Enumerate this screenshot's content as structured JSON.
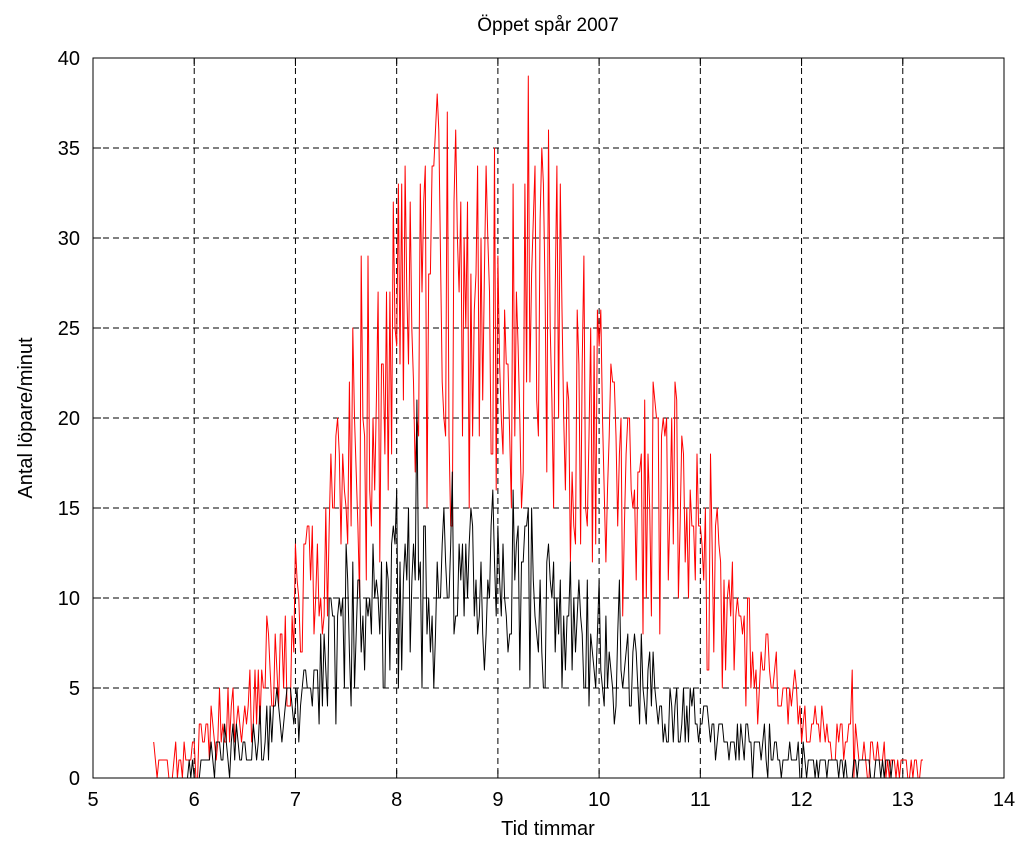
{
  "chart_data": {
    "type": "line",
    "title": "Öppet spår 2007",
    "xlabel": "Tid timmar",
    "ylabel": "Antal löpare/minut",
    "xlim": [
      5,
      14
    ],
    "ylim": [
      0,
      40
    ],
    "xticks": [
      5,
      6,
      7,
      8,
      9,
      10,
      11,
      12,
      13,
      14
    ],
    "yticks": [
      0,
      5,
      10,
      15,
      20,
      25,
      30,
      35,
      40
    ],
    "grid": true,
    "legend": "none",
    "series_envelope_note": "",
    "series": [
      {
        "color": "#ff0000",
        "x": [
          5.6,
          5.7,
          5.8,
          5.9,
          6.0,
          6.1,
          6.2,
          6.3,
          6.4,
          6.5,
          6.6,
          6.7,
          6.8,
          6.9,
          7.0,
          7.1,
          7.2,
          7.3,
          7.4,
          7.5,
          7.6,
          7.7,
          7.8,
          7.9,
          8.0,
          8.1,
          8.2,
          8.3,
          8.4,
          8.5,
          8.6,
          8.7,
          8.8,
          8.9,
          9.0,
          9.1,
          9.2,
          9.3,
          9.4,
          9.5,
          9.6,
          9.7,
          9.8,
          9.9,
          10.0,
          10.1,
          10.2,
          10.3,
          10.4,
          10.5,
          10.6,
          10.7,
          10.8,
          10.9,
          11.0,
          11.1,
          11.2,
          11.3,
          11.4,
          11.5,
          11.6,
          11.7,
          11.8,
          11.9,
          12.0,
          12.1,
          12.2,
          12.3,
          12.4,
          12.5,
          12.6,
          12.7,
          12.8,
          12.9,
          13.0,
          13.1,
          13.2
        ],
        "y": [
          1,
          0.5,
          1,
          1,
          1.5,
          2,
          2.5,
          3,
          3,
          4,
          5,
          6,
          6.5,
          7,
          8.5,
          10,
          11,
          12,
          13.5,
          15,
          17.5,
          19.5,
          21,
          22,
          23.5,
          24.5,
          24,
          24.5,
          25,
          25,
          25,
          25,
          24.5,
          24,
          24.5,
          25,
          25.5,
          26,
          25.5,
          25,
          24,
          23,
          21.5,
          20,
          18.5,
          17.5,
          17,
          16.5,
          16,
          15.5,
          15,
          14.5,
          14,
          13,
          12,
          10.5,
          9.5,
          8.5,
          7.5,
          7,
          6,
          5,
          4.5,
          4,
          3.5,
          3,
          2.5,
          2,
          2,
          1.5,
          1.5,
          1,
          1,
          0.5,
          0.5,
          0.5,
          1
        ],
        "peaks": [
          [
            7.0,
            13
          ],
          [
            7.65,
            29
          ],
          [
            8.05,
            33
          ],
          [
            8.4,
            38
          ],
          [
            8.5,
            37
          ],
          [
            8.8,
            34
          ],
          [
            9.3,
            39
          ],
          [
            9.45,
            33
          ],
          [
            10.75,
            22
          ],
          [
            11.1,
            18
          ],
          [
            12.5,
            6
          ]
        ]
      },
      {
        "color": "#000000",
        "x": [
          5.9,
          6.0,
          6.1,
          6.2,
          6.3,
          6.4,
          6.5,
          6.6,
          6.7,
          6.8,
          6.9,
          7.0,
          7.1,
          7.2,
          7.3,
          7.4,
          7.5,
          7.6,
          7.7,
          7.8,
          7.9,
          8.0,
          8.1,
          8.2,
          8.3,
          8.4,
          8.5,
          8.6,
          8.7,
          8.8,
          8.9,
          9.0,
          9.1,
          9.2,
          9.3,
          9.4,
          9.5,
          9.6,
          9.7,
          9.8,
          9.9,
          10.0,
          10.1,
          10.2,
          10.3,
          10.4,
          10.5,
          10.6,
          10.7,
          10.8,
          10.9,
          11.0,
          11.1,
          11.2,
          11.3,
          11.4,
          11.5,
          11.6,
          11.7,
          11.8,
          11.9,
          12.0,
          12.1,
          12.2,
          12.3,
          12.4,
          12.5,
          12.6,
          12.7,
          12.8,
          12.9
        ],
        "y": [
          0.5,
          0.5,
          1,
          1,
          1.5,
          1.5,
          2,
          2,
          2.5,
          3,
          3.5,
          4,
          5,
          5.5,
          6.5,
          7,
          7.5,
          8,
          8.5,
          9,
          9,
          9.5,
          10,
          10,
          10,
          10,
          10,
          10.5,
          10.5,
          10.5,
          10,
          10,
          10,
          10,
          10,
          9.5,
          9,
          8.5,
          8,
          7.5,
          7,
          7,
          6.5,
          6,
          5.5,
          5,
          5,
          4.5,
          4,
          3.5,
          3,
          3,
          2.5,
          2.5,
          2,
          2,
          1.5,
          1.5,
          1.5,
          1,
          1,
          1,
          0.5,
          0.5,
          0.5,
          0.5,
          0.5,
          0.5,
          0.5,
          0.5,
          0.5
        ],
        "peaks": [
          [
            7.5,
            13
          ],
          [
            8.0,
            16
          ],
          [
            8.2,
            21
          ],
          [
            8.55,
            17
          ],
          [
            8.95,
            16
          ],
          [
            9.15,
            16
          ],
          [
            10.0,
            11
          ],
          [
            10.2,
            11
          ]
        ]
      }
    ]
  }
}
